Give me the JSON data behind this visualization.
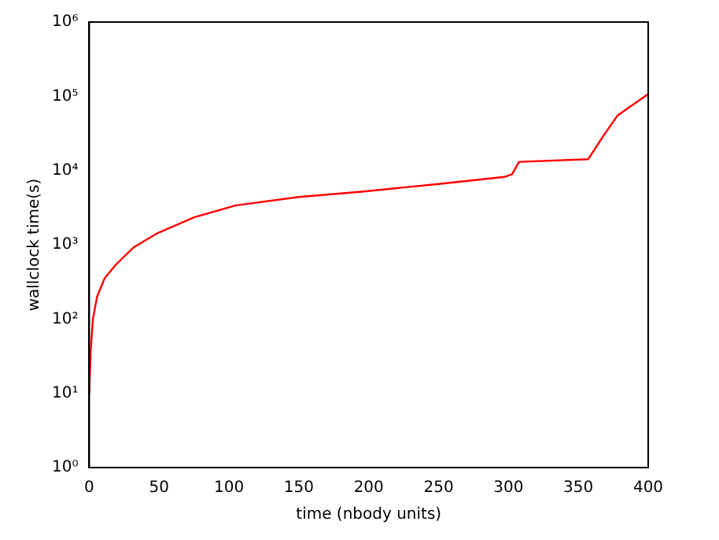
{
  "chart_data": {
    "type": "line",
    "xlabel": "time (nbody units)",
    "ylabel": "wallclock time(s)",
    "log": "y",
    "grid": false,
    "legend": false,
    "marker": "none",
    "line_style": "solid",
    "x": [
      0,
      1,
      2.6,
      5.6,
      11,
      19,
      32,
      49,
      75,
      105,
      150,
      195,
      250,
      297,
      302.6,
      307.5,
      357,
      368,
      378,
      400
    ],
    "series": [
      {
        "color": "#ff0000",
        "values": [
          10,
          37,
          100,
          200,
          355,
          540,
          930,
          1440,
          2340,
          3400,
          4400,
          5200,
          6600,
          8200,
          8900,
          13100,
          14200,
          29500,
          55000,
          107000
        ]
      }
    ],
    "xlim": [
      0,
      400
    ],
    "xticks": [
      0,
      50,
      100,
      150,
      200,
      250,
      300,
      350,
      400
    ],
    "ylim": [
      1,
      1000000
    ],
    "yticks": [
      {
        "value": 1,
        "label": "10⁰"
      },
      {
        "value": 10,
        "label": "10¹"
      },
      {
        "value": 100,
        "label": "10²"
      },
      {
        "value": 1000,
        "label": "10³"
      },
      {
        "value": 10000,
        "label": "10⁴"
      },
      {
        "value": 100000,
        "label": "10⁵"
      },
      {
        "value": 1000000,
        "label": "10⁶"
      }
    ]
  }
}
